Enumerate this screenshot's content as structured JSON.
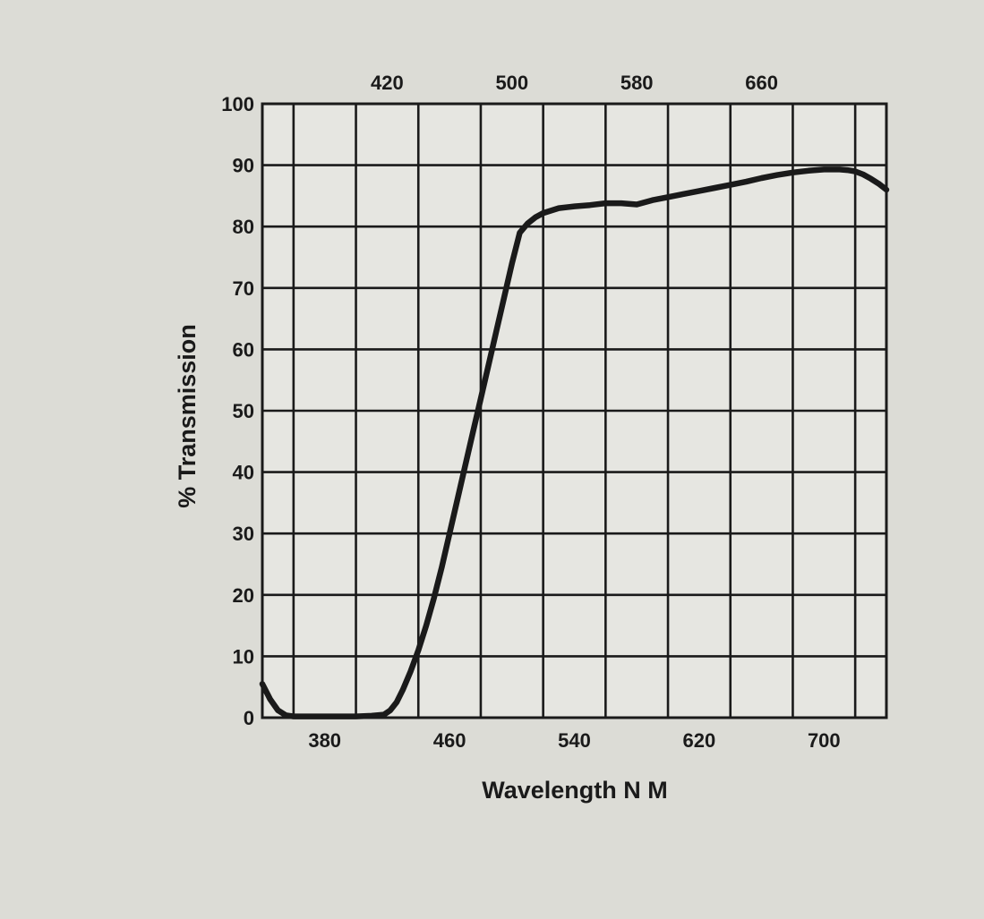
{
  "chart_data": {
    "type": "line",
    "title": "",
    "xlabel": "Wavelength N M",
    "ylabel": "% Transmission",
    "xlim": [
      340,
      740
    ],
    "ylim": [
      0,
      100
    ],
    "grid": true,
    "bottom_x_ticks": [
      380,
      460,
      540,
      620,
      700
    ],
    "top_x_ticks": [
      420,
      500,
      580,
      660
    ],
    "y_ticks": [
      0,
      10,
      20,
      30,
      40,
      50,
      60,
      70,
      80,
      90,
      100
    ],
    "series": [
      {
        "x": [
          340,
          345,
          350,
          355,
          360,
          370,
          380,
          390,
          400,
          410,
          418,
          422,
          426,
          430,
          435,
          440,
          445,
          450,
          455,
          460,
          465,
          470,
          475,
          480,
          485,
          490,
          495,
          500,
          505,
          510,
          515,
          520,
          530,
          540,
          550,
          560,
          570,
          580,
          590,
          600,
          610,
          620,
          630,
          640,
          650,
          660,
          670,
          680,
          690,
          700,
          710,
          715,
          720,
          725,
          730,
          735,
          740
        ],
        "y": [
          5.5,
          3.0,
          1.2,
          0.4,
          0.2,
          0.2,
          0.2,
          0.2,
          0.2,
          0.3,
          0.5,
          1.2,
          2.5,
          4.5,
          7.5,
          11.0,
          15.0,
          19.5,
          24.5,
          30.0,
          35.5,
          41.0,
          46.5,
          52.0,
          57.5,
          63.0,
          68.5,
          74.0,
          79.0,
          80.5,
          81.5,
          82.2,
          83.0,
          83.3,
          83.5,
          83.8,
          83.8,
          83.6,
          84.3,
          84.8,
          85.3,
          85.8,
          86.3,
          86.8,
          87.3,
          87.9,
          88.4,
          88.8,
          89.1,
          89.3,
          89.3,
          89.2,
          89.0,
          88.5,
          87.8,
          87.0,
          86.0
        ]
      }
    ]
  },
  "colors": {
    "background": "#dcdcd6",
    "plot_background": "#e6e6e1",
    "ink": "#1a1a1a"
  }
}
